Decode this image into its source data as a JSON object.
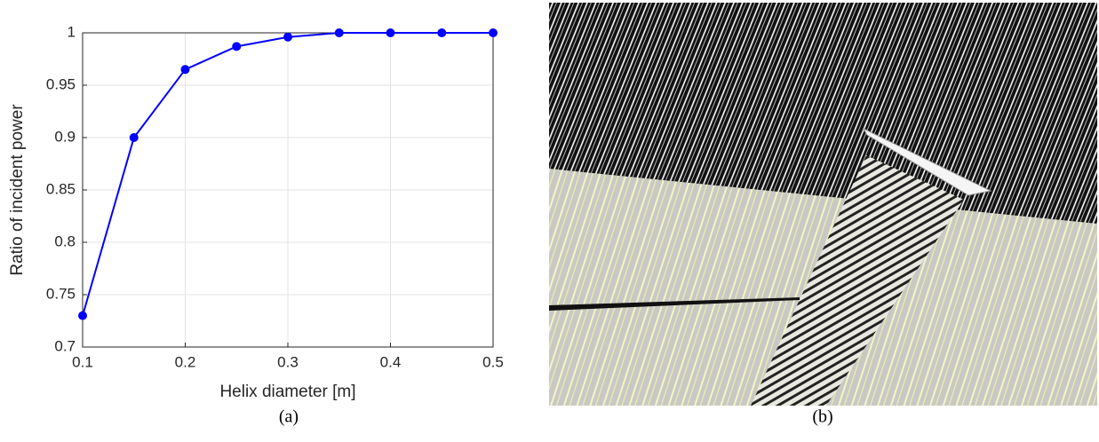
{
  "chart_data": {
    "type": "line",
    "xlabel": "Helix diameter [m]",
    "ylabel": "Ratio of incident power",
    "x": [
      0.1,
      0.15,
      0.2,
      0.25,
      0.3,
      0.35,
      0.4,
      0.45,
      0.5
    ],
    "series": [
      {
        "color": "#0000ff",
        "values": [
          0.73,
          0.9,
          0.965,
          0.987,
          0.996,
          1,
          1,
          1,
          1
        ]
      }
    ],
    "xlim": [
      0.1,
      0.5
    ],
    "ylim": [
      0.7,
      1
    ],
    "xticks": [
      0.1,
      0.2,
      0.3,
      0.4,
      0.5
    ],
    "yticks": [
      0.7,
      0.75,
      0.8,
      0.85,
      0.9,
      0.95,
      1
    ],
    "grid": true
  },
  "captions": {
    "a": "(a)",
    "b": "(b)"
  }
}
